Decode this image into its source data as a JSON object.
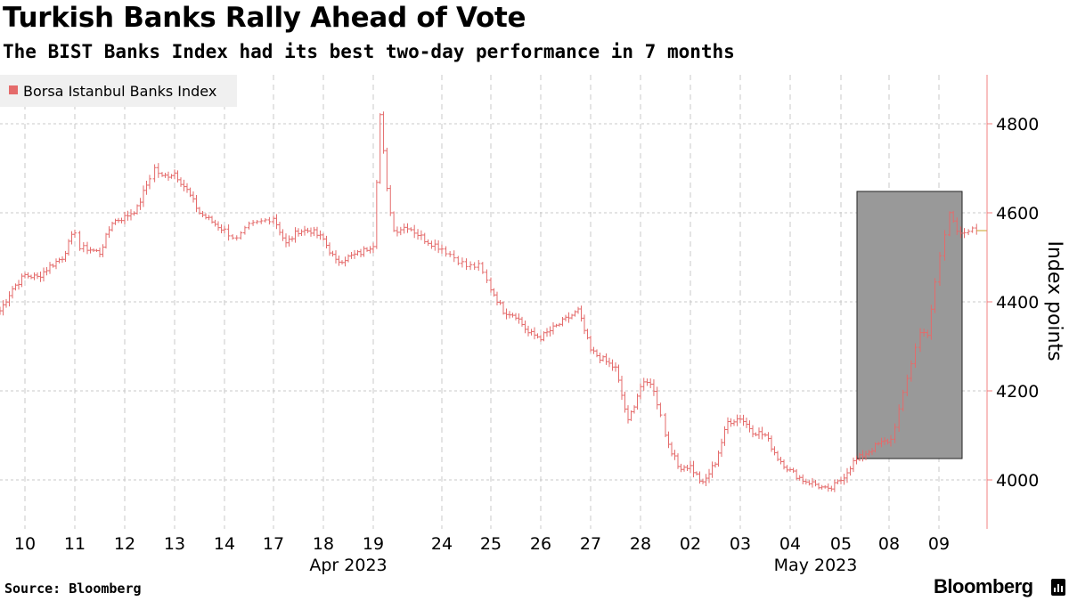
{
  "header": {
    "title": "Turkish Banks Rally Ahead of Vote",
    "subtitle": "The BIST Banks Index had its best two-day performance in 7 months"
  },
  "footer": {
    "source": "Source: Bloomberg",
    "brand": "Bloomberg"
  },
  "chart_data": {
    "type": "line",
    "title": "Turkish Banks Rally Ahead of Vote",
    "subtitle": "The BIST Banks Index had its best two-day performance in 7 months",
    "ylabel": "Index points",
    "ylim": [
      3890,
      4910
    ],
    "y_ticks": [
      4000,
      4200,
      4400,
      4600,
      4800
    ],
    "grid": true,
    "legend": {
      "position": "top-left",
      "entries": [
        "Borsa Istanbul Banks Index"
      ]
    },
    "colors": {
      "series": "#e46b6b",
      "axis": "#f08080",
      "highlight": "#999999",
      "last_value_line": "#c9a227"
    },
    "x_ticks": [
      "10",
      "11",
      "12",
      "13",
      "14",
      "17",
      "18",
      "19",
      "24",
      "25",
      "26",
      "27",
      "28",
      "02",
      "03",
      "04",
      "05",
      "08",
      "08",
      "09"
    ],
    "x_month_labels": [
      {
        "label": "Apr 2023",
        "under_tick": 6.5
      },
      {
        "label": "May 2023",
        "under_tick": 15.5
      }
    ],
    "highlight": {
      "from_tick": 16.6,
      "to_tick": 20.35,
      "ymin": 4048,
      "ymax": 4648
    },
    "last_value": 4560,
    "x_tick_positions": [
      0,
      1,
      2,
      3,
      4,
      5,
      6,
      7,
      8,
      9,
      10,
      11,
      12,
      13,
      14,
      15,
      16,
      17,
      18,
      19
    ],
    "series": [
      {
        "name": "Borsa Istanbul Banks Index",
        "x": [
          -0.5,
          -0.25,
          0,
          0.25,
          0.5,
          0.75,
          1,
          1.1,
          1.25,
          1.5,
          1.75,
          2,
          2.25,
          2.5,
          2.6,
          2.75,
          3,
          3.25,
          3.5,
          3.75,
          4,
          4.25,
          4.5,
          4.75,
          5,
          5.25,
          5.5,
          5.75,
          6,
          6.25,
          6.5,
          6.75,
          7,
          7.1,
          7.2,
          7.3,
          7.5,
          7.75,
          8,
          8.25,
          8.5,
          8.75,
          9,
          9.25,
          9.5,
          9.75,
          10,
          10.25,
          10.5,
          10.75,
          11,
          11.25,
          11.5,
          11.75,
          12,
          12.2,
          12.4,
          12.5,
          12.75,
          13,
          13.25,
          13.5,
          13.75,
          14,
          14.25,
          14.5,
          14.75,
          15,
          15.25,
          15.5,
          15.75,
          16,
          16.25,
          16.5,
          16.75,
          17,
          17.25,
          17.5,
          17.6,
          17.75,
          17.9,
          18,
          18.1,
          18.2,
          18.35,
          18.5,
          18.75
        ],
        "values": [
          4380,
          4430,
          4460,
          4455,
          4480,
          4500,
          4560,
          4520,
          4520,
          4510,
          4580,
          4590,
          4610,
          4680,
          4700,
          4680,
          4690,
          4650,
          4600,
          4580,
          4560,
          4540,
          4570,
          4580,
          4590,
          4530,
          4560,
          4560,
          4540,
          4490,
          4500,
          4510,
          4530,
          4820,
          4650,
          4560,
          4570,
          4540,
          4520,
          4500,
          4480,
          4480,
          4430,
          4380,
          4370,
          4330,
          4320,
          4340,
          4360,
          4380,
          4290,
          4270,
          4250,
          4130,
          4210,
          4220,
          4150,
          4100,
          4030,
          4030,
          3990,
          4040,
          4130,
          4140,
          4110,
          4100,
          4050,
          4020,
          4000,
          3990,
          3975,
          4000,
          4040,
          4060,
          4080,
          4090,
          4190,
          4300,
          4330,
          4330,
          4440,
          4500,
          4550,
          4600,
          4560,
          4560,
          4560
        ]
      }
    ]
  }
}
